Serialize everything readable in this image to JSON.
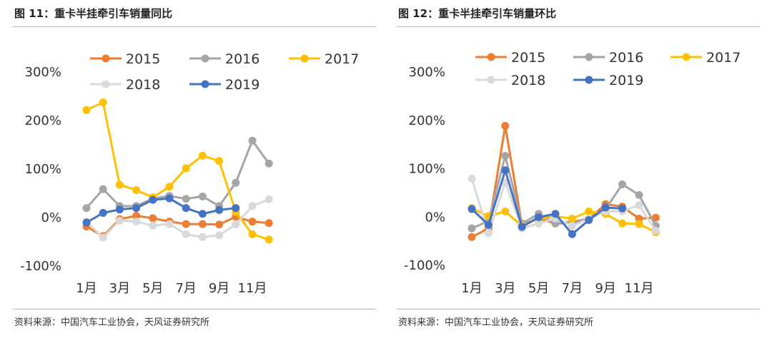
{
  "charts": [
    {
      "title": "图 11：重卡半挂牵引车销量同比",
      "source": "资料来源：中国汽车工业协会，天风证券研究所"
    },
    {
      "title": "图 12：重卡半挂牵引车销量环比",
      "source": "资料来源：中国汽车工业协会，天风证券研究所"
    }
  ],
  "chart_data": [
    {
      "type": "line",
      "title": "图 11：重卡半挂牵引车销量同比",
      "categories": [
        "1月",
        "2月",
        "3月",
        "4月",
        "5月",
        "6月",
        "7月",
        "8月",
        "9月",
        "10月",
        "11月",
        "12月"
      ],
      "x_tick_labels": [
        "1月",
        "3月",
        "5月",
        "7月",
        "9月",
        "11月"
      ],
      "y_tick_labels": [
        "300%",
        "200%",
        "100%",
        "0%",
        "-100%"
      ],
      "ylim": [
        -100,
        300
      ],
      "grid": false,
      "legend": "top",
      "series": [
        {
          "name": "2015",
          "color": "#ed7d31",
          "values": [
            -20,
            -40,
            -5,
            2,
            -3,
            -10,
            -15,
            -15,
            -16,
            0,
            -10,
            -13
          ]
        },
        {
          "name": "2016",
          "color": "#a5a5a5",
          "values": [
            18,
            57,
            22,
            22,
            38,
            43,
            37,
            42,
            22,
            70,
            157,
            110
          ]
        },
        {
          "name": "2017",
          "color": "#ffc000",
          "values": [
            220,
            236,
            66,
            55,
            40,
            62,
            100,
            126,
            115,
            10,
            -36,
            -47
          ]
        },
        {
          "name": "2018",
          "color": "#d9d9d9",
          "values": [
            -10,
            -43,
            -8,
            -10,
            -18,
            -15,
            -36,
            -42,
            -38,
            -16,
            22,
            36
          ]
        },
        {
          "name": "2019",
          "color": "#4472c4",
          "values": [
            -12,
            8,
            15,
            18,
            35,
            38,
            18,
            6,
            14,
            18,
            null,
            null
          ]
        }
      ]
    },
    {
      "type": "line",
      "title": "图 12：重卡半挂牵引车销量环比",
      "categories": [
        "1月",
        "2月",
        "3月",
        "4月",
        "5月",
        "6月",
        "7月",
        "8月",
        "9月",
        "10月",
        "11月",
        "12月"
      ],
      "x_tick_labels": [
        "1月",
        "3月",
        "5月",
        "7月",
        "9月",
        "11月"
      ],
      "y_tick_labels": [
        "300%",
        "200%",
        "100%",
        "0%",
        "-100%"
      ],
      "ylim": [
        -100,
        300
      ],
      "grid": false,
      "legend": "top",
      "series": [
        {
          "name": "2015",
          "color": "#ed7d31",
          "values": [
            -43,
            -25,
            187,
            -18,
            -5,
            -15,
            -12,
            -5,
            25,
            20,
            -5,
            -3
          ]
        },
        {
          "name": "2016",
          "color": "#a5a5a5",
          "values": [
            -25,
            -10,
            125,
            -15,
            5,
            -15,
            -15,
            -5,
            15,
            66,
            44,
            -20
          ]
        },
        {
          "name": "2017",
          "color": "#ffc000",
          "values": [
            17,
            0,
            10,
            -20,
            -5,
            0,
            -5,
            10,
            5,
            -15,
            -16,
            -33
          ]
        },
        {
          "name": "2018",
          "color": "#d9d9d9",
          "values": [
            78,
            -35,
            70,
            -25,
            -15,
            -5,
            -20,
            -5,
            10,
            10,
            23,
            -30
          ]
        },
        {
          "name": "2019",
          "color": "#4472c4",
          "values": [
            15,
            -18,
            95,
            -22,
            -2,
            5,
            -37,
            -8,
            18,
            16,
            null,
            null
          ]
        }
      ]
    }
  ]
}
